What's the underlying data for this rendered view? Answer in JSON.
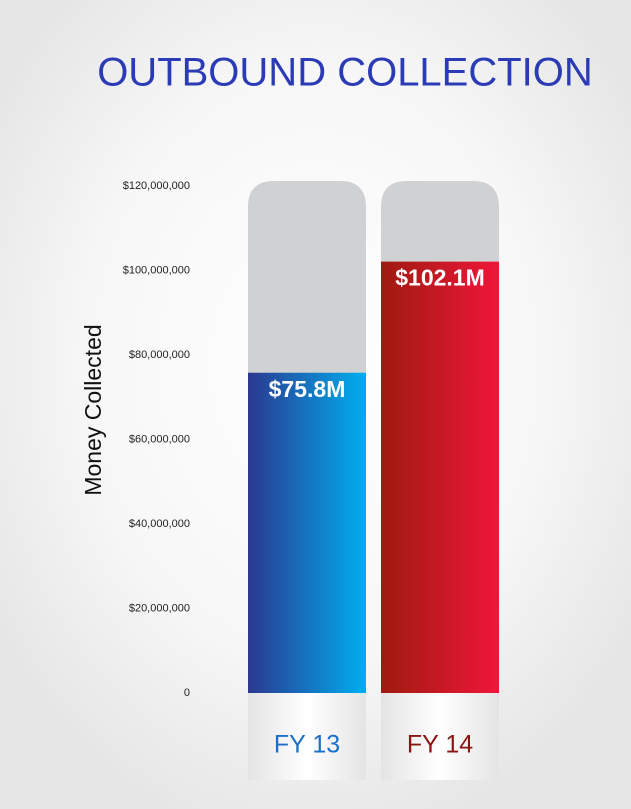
{
  "chart_data": {
    "type": "bar",
    "title": "OUTBOUND COLLECTION",
    "y_label": "Money Collected",
    "categories": [
      "FY 13",
      "FY 14"
    ],
    "values": [
      75800000,
      102100000
    ],
    "value_labels": [
      "$75.8M",
      "$102.1M"
    ],
    "colors": [
      [
        "#2b3990",
        "#00aeef"
      ],
      [
        "#9e1b0f",
        "#f0163a"
      ]
    ],
    "category_colors": [
      "#1b6fc8",
      "#8a1515"
    ],
    "ylim": [
      0,
      120000000
    ],
    "yticks": [
      0,
      {
        "value": 20000000,
        "label": "$20,000,000"
      },
      {
        "value": 40000000,
        "label": "$40,000,000"
      },
      {
        "value": 60000000,
        "label": "$60,000,000"
      },
      {
        "value": 80000000,
        "label": "$80,000,000"
      },
      {
        "value": 100000000,
        "label": "$100,000,000"
      },
      {
        "value": 120000000,
        "label": "$120,000,000"
      }
    ]
  }
}
